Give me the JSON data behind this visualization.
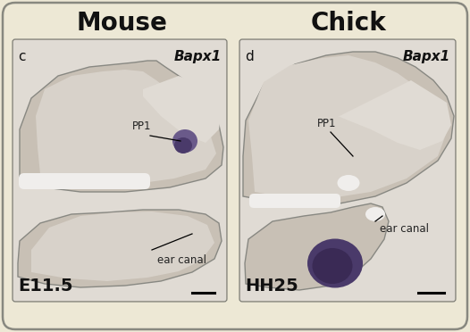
{
  "bg_color": "#ede8d5",
  "border_color": "#888880",
  "title_left": "Mouse",
  "title_right": "Chick",
  "title_fontsize": 20,
  "title_fontweight": "bold",
  "label_c": "c",
  "label_d": "d",
  "gene_label": "Bapx1",
  "gene_fontsize": 11,
  "panel_label_fontsize": 11,
  "annotation_fontsize": 8.5,
  "stage_left": "E11.5",
  "stage_right": "HH25",
  "stage_fontsize": 14,
  "stage_fontweight": "bold",
  "pp1_label": "PP1",
  "ear_canal_label": "ear canal",
  "text_color": "#111111",
  "annotation_color": "#222222",
  "scale_bar_color": "#000000",
  "panel_bg": "#cdc8be",
  "tissue_main": "#c8c0b5",
  "tissue_light": "#d8d2ca",
  "tissue_lighter": "#e0dbd4",
  "tissue_dark": "#b8b0a5",
  "purple_dark": "#4a3a6a",
  "purple_mid": "#6a5a8a",
  "purple_light": "#9a8aaa",
  "bone_white": "#f0eeec"
}
